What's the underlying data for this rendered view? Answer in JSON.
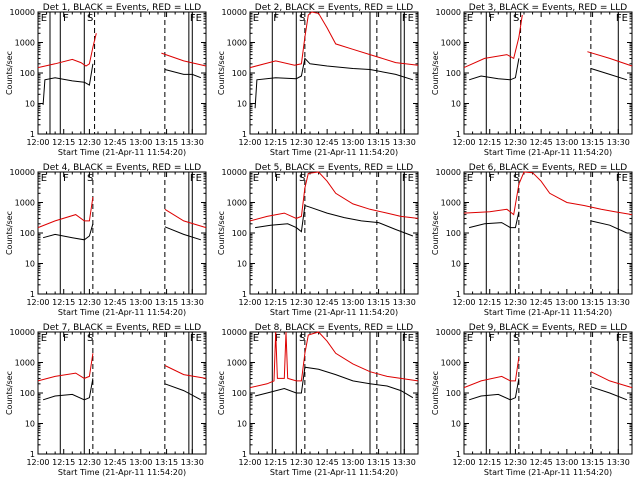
{
  "chart_data": {
    "type": "line",
    "layout": "3x3 grid",
    "xlabel": "Start Time (21-Apr-11 11:54:20)",
    "ylabel": "Counts/sec",
    "x_ticks": [
      "12:00",
      "12:15",
      "12:30",
      "12:45",
      "13:00",
      "13:15",
      "13:30"
    ],
    "x_range_minutes": [
      0,
      98
    ],
    "y_scale": "log",
    "y_ticks": [
      "1",
      "10",
      "100",
      "1000",
      "10000"
    ],
    "ylim": [
      1,
      10000
    ],
    "series_colors": {
      "black": "#000000",
      "red": "#dd0000"
    },
    "marker_labels": {
      "E": "E",
      "F": "F",
      "S": "S",
      "FE": "FE"
    },
    "panels": [
      {
        "title": "Det 1, BLACK = Events, RED = LLD",
        "solid_lines": [
          7,
          13,
          27,
          88,
          90
        ],
        "dashed_lines": [
          33,
          74
        ],
        "labels": [
          {
            "t": "E",
            "x": 1
          },
          {
            "t": "F",
            "x": 14
          },
          {
            "t": "S",
            "x": 28
          },
          {
            "t": "FE",
            "x": 88
          }
        ],
        "black": [
          [
            3,
            9
          ],
          [
            4,
            60
          ],
          [
            10,
            70
          ],
          [
            20,
            55
          ],
          [
            27,
            50
          ],
          [
            30,
            40
          ],
          [
            32,
            200
          ],
          [
            33,
            null
          ],
          [
            72,
            null
          ],
          [
            74,
            130
          ],
          [
            85,
            90
          ],
          [
            90,
            90
          ],
          [
            95,
            70
          ]
        ],
        "red": [
          [
            0,
            150
          ],
          [
            10,
            200
          ],
          [
            20,
            280
          ],
          [
            25,
            220
          ],
          [
            28,
            170
          ],
          [
            30,
            200
          ],
          [
            32,
            700
          ],
          [
            34,
            2000
          ],
          [
            35,
            null
          ],
          [
            70,
            null
          ],
          [
            72,
            450
          ],
          [
            85,
            250
          ],
          [
            98,
            170
          ]
        ]
      },
      {
        "title": "Det 2, BLACK = Events, RED = LLD",
        "solid_lines": [
          13,
          27,
          70,
          88,
          90
        ],
        "dashed_lines": [
          32,
          74
        ],
        "labels": [
          {
            "t": "E",
            "x": 1
          },
          {
            "t": "F",
            "x": 13
          },
          {
            "t": "S",
            "x": 28
          },
          {
            "t": "FE",
            "x": 88
          }
        ],
        "black": [
          [
            3,
            7
          ],
          [
            4,
            60
          ],
          [
            15,
            70
          ],
          [
            27,
            65
          ],
          [
            30,
            80
          ],
          [
            32,
            300
          ],
          [
            35,
            200
          ],
          [
            45,
            170
          ],
          [
            60,
            140
          ],
          [
            70,
            130
          ],
          [
            85,
            90
          ],
          [
            95,
            60
          ]
        ],
        "red": [
          [
            0,
            150
          ],
          [
            15,
            250
          ],
          [
            26,
            180
          ],
          [
            30,
            200
          ],
          [
            32,
            1500
          ],
          [
            34,
            8000
          ],
          [
            36,
            10000
          ],
          [
            40,
            9000
          ],
          [
            45,
            3000
          ],
          [
            50,
            900
          ],
          [
            60,
            600
          ],
          [
            70,
            400
          ],
          [
            85,
            220
          ],
          [
            98,
            180
          ]
        ]
      },
      {
        "title": "Det 3, BLACK = Events, RED = LLD",
        "solid_lines": [
          13,
          27,
          90
        ],
        "dashed_lines": [
          33,
          74
        ],
        "labels": [
          {
            "t": "E",
            "x": 1
          },
          {
            "t": "F",
            "x": 14
          },
          {
            "t": "S",
            "x": 28
          },
          {
            "t": "FE",
            "x": 88
          }
        ],
        "black": [
          [
            3,
            60
          ],
          [
            10,
            80
          ],
          [
            20,
            65
          ],
          [
            27,
            60
          ],
          [
            30,
            70
          ],
          [
            32,
            300
          ],
          [
            33,
            null
          ],
          [
            72,
            null
          ],
          [
            74,
            140
          ],
          [
            85,
            90
          ],
          [
            95,
            60
          ]
        ],
        "red": [
          [
            0,
            150
          ],
          [
            12,
            300
          ],
          [
            25,
            400
          ],
          [
            29,
            300
          ],
          [
            32,
            1500
          ],
          [
            34,
            8000
          ],
          [
            35,
            null
          ],
          [
            70,
            null
          ],
          [
            72,
            500
          ],
          [
            85,
            300
          ],
          [
            98,
            170
          ]
        ]
      },
      {
        "title": "Det 4, BLACK = Events, RED = LLD",
        "solid_lines": [
          13,
          27,
          88,
          90
        ],
        "dashed_lines": [
          32,
          74
        ],
        "labels": [
          {
            "t": "E",
            "x": 1
          },
          {
            "t": "F",
            "x": 14
          },
          {
            "t": "S",
            "x": 28
          },
          {
            "t": "FE",
            "x": 88
          }
        ],
        "black": [
          [
            3,
            70
          ],
          [
            10,
            90
          ],
          [
            20,
            70
          ],
          [
            27,
            60
          ],
          [
            30,
            80
          ],
          [
            32,
            200
          ],
          [
            33,
            null
          ],
          [
            72,
            null
          ],
          [
            74,
            160
          ],
          [
            85,
            90
          ],
          [
            95,
            60
          ]
        ],
        "red": [
          [
            0,
            150
          ],
          [
            10,
            250
          ],
          [
            22,
            400
          ],
          [
            27,
            250
          ],
          [
            30,
            250
          ],
          [
            32,
            1500
          ],
          [
            33,
            null
          ],
          [
            72,
            null
          ],
          [
            74,
            600
          ],
          [
            85,
            250
          ],
          [
            98,
            150
          ]
        ]
      },
      {
        "title": "Det 5, BLACK = Events, RED = LLD",
        "solid_lines": [
          13,
          27,
          88,
          90
        ],
        "dashed_lines": [
          32,
          74
        ],
        "labels": [
          {
            "t": "E",
            "x": 1
          },
          {
            "t": "F",
            "x": 14
          },
          {
            "t": "S",
            "x": 28
          },
          {
            "t": "FE",
            "x": 88
          }
        ],
        "black": [
          [
            3,
            150
          ],
          [
            12,
            180
          ],
          [
            22,
            200
          ],
          [
            27,
            150
          ],
          [
            30,
            110
          ],
          [
            32,
            800
          ],
          [
            35,
            700
          ],
          [
            45,
            450
          ],
          [
            55,
            320
          ],
          [
            65,
            250
          ],
          [
            75,
            220
          ],
          [
            85,
            130
          ],
          [
            95,
            80
          ]
        ],
        "red": [
          [
            0,
            250
          ],
          [
            10,
            350
          ],
          [
            20,
            450
          ],
          [
            27,
            300
          ],
          [
            30,
            350
          ],
          [
            32,
            3000
          ],
          [
            34,
            9000
          ],
          [
            40,
            10000
          ],
          [
            45,
            5000
          ],
          [
            50,
            2000
          ],
          [
            60,
            900
          ],
          [
            70,
            600
          ],
          [
            80,
            450
          ],
          [
            88,
            350
          ],
          [
            98,
            300
          ]
        ]
      },
      {
        "title": "Det 6, BLACK = Events, RED = LLD",
        "solid_lines": [
          13,
          27,
          90
        ],
        "dashed_lines": [
          32,
          74
        ],
        "labels": [
          {
            "t": "E",
            "x": 1
          },
          {
            "t": "F",
            "x": 14
          },
          {
            "t": "S",
            "x": 28
          },
          {
            "t": "FE",
            "x": 88
          }
        ],
        "black": [
          [
            3,
            150
          ],
          [
            12,
            200
          ],
          [
            22,
            220
          ],
          [
            27,
            150
          ],
          [
            30,
            150
          ],
          [
            32,
            500
          ],
          [
            33,
            null
          ],
          [
            72,
            null
          ],
          [
            74,
            250
          ],
          [
            85,
            180
          ],
          [
            95,
            100
          ]
        ],
        "red": [
          [
            0,
            450
          ],
          [
            15,
            500
          ],
          [
            25,
            600
          ],
          [
            29,
            400
          ],
          [
            32,
            4000
          ],
          [
            35,
            10000
          ],
          [
            40,
            9500
          ],
          [
            45,
            5000
          ],
          [
            50,
            2000
          ],
          [
            60,
            1000
          ],
          [
            70,
            800
          ],
          [
            80,
            600
          ],
          [
            88,
            500
          ],
          [
            98,
            400
          ]
        ]
      },
      {
        "title": "Det 7, BLACK = Events, RED = LLD",
        "solid_lines": [
          13,
          27,
          88,
          90
        ],
        "dashed_lines": [
          32,
          74
        ],
        "labels": [
          {
            "t": "E",
            "x": 1
          },
          {
            "t": "F",
            "x": 14
          },
          {
            "t": "S",
            "x": 28
          },
          {
            "t": "FE",
            "x": 88
          }
        ],
        "black": [
          [
            3,
            60
          ],
          [
            10,
            80
          ],
          [
            20,
            90
          ],
          [
            27,
            60
          ],
          [
            30,
            70
          ],
          [
            32,
            300
          ],
          [
            33,
            null
          ],
          [
            72,
            null
          ],
          [
            74,
            200
          ],
          [
            85,
            120
          ],
          [
            95,
            60
          ]
        ],
        "red": [
          [
            0,
            250
          ],
          [
            10,
            350
          ],
          [
            22,
            450
          ],
          [
            27,
            300
          ],
          [
            30,
            350
          ],
          [
            32,
            2000
          ],
          [
            33,
            null
          ],
          [
            72,
            null
          ],
          [
            74,
            800
          ],
          [
            85,
            400
          ],
          [
            98,
            300
          ]
        ]
      },
      {
        "title": "Det 8, BLACK = Events, RED = LLD",
        "solid_lines": [
          13,
          27,
          70,
          88,
          90
        ],
        "dashed_lines": [
          32,
          74
        ],
        "labels": [
          {
            "t": "E",
            "x": 1
          },
          {
            "t": "F",
            "x": 14
          },
          {
            "t": "S",
            "x": 28
          },
          {
            "t": "FE",
            "x": 88
          }
        ],
        "black": [
          [
            3,
            80
          ],
          [
            10,
            100
          ],
          [
            20,
            140
          ],
          [
            27,
            100
          ],
          [
            30,
            100
          ],
          [
            32,
            700
          ],
          [
            40,
            600
          ],
          [
            50,
            400
          ],
          [
            60,
            250
          ],
          [
            70,
            200
          ],
          [
            80,
            170
          ],
          [
            88,
            120
          ],
          [
            95,
            70
          ]
        ],
        "red": [
          [
            0,
            150
          ],
          [
            10,
            200
          ],
          [
            14,
            250
          ],
          [
            15,
            10000
          ],
          [
            16,
            300
          ],
          [
            20,
            300
          ],
          [
            21,
            10000
          ],
          [
            22,
            300
          ],
          [
            27,
            250
          ],
          [
            30,
            250
          ],
          [
            32,
            2000
          ],
          [
            34,
            8000
          ],
          [
            40,
            10000
          ],
          [
            45,
            5000
          ],
          [
            50,
            2000
          ],
          [
            60,
            900
          ],
          [
            70,
            500
          ],
          [
            80,
            350
          ],
          [
            98,
            250
          ]
        ]
      },
      {
        "title": "Det 9, BLACK = Events, RED = LLD",
        "solid_lines": [
          13,
          27,
          90
        ],
        "dashed_lines": [
          32,
          74
        ],
        "labels": [
          {
            "t": "E",
            "x": 1
          },
          {
            "t": "F",
            "x": 14
          },
          {
            "t": "S",
            "x": 28
          },
          {
            "t": "FE",
            "x": 88
          }
        ],
        "black": [
          [
            3,
            60
          ],
          [
            10,
            80
          ],
          [
            20,
            90
          ],
          [
            27,
            60
          ],
          [
            30,
            70
          ],
          [
            32,
            300
          ],
          [
            33,
            null
          ],
          [
            72,
            null
          ],
          [
            74,
            160
          ],
          [
            85,
            100
          ],
          [
            95,
            60
          ]
        ],
        "red": [
          [
            0,
            150
          ],
          [
            10,
            250
          ],
          [
            22,
            350
          ],
          [
            27,
            250
          ],
          [
            30,
            250
          ],
          [
            32,
            1500
          ],
          [
            33,
            null
          ],
          [
            72,
            null
          ],
          [
            74,
            500
          ],
          [
            85,
            250
          ],
          [
            98,
            150
          ]
        ]
      }
    ]
  }
}
